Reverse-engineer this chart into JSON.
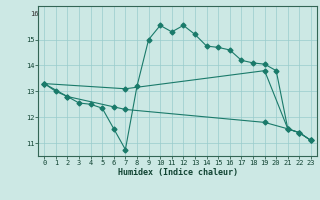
{
  "xlabel": "Humidex (Indice chaleur)",
  "background_color": "#cce8e4",
  "grid_color": "#99cccc",
  "line_color": "#1a7a6a",
  "xlim": [
    -0.5,
    23.5
  ],
  "ylim": [
    10.5,
    16.3
  ],
  "xticks": [
    0,
    1,
    2,
    3,
    4,
    5,
    6,
    7,
    8,
    9,
    10,
    11,
    12,
    13,
    14,
    15,
    16,
    17,
    18,
    19,
    20,
    21,
    22,
    23
  ],
  "yticks": [
    11,
    12,
    13,
    14,
    15
  ],
  "ytick_top": 16,
  "line1_x": [
    0,
    1,
    2,
    3,
    4,
    5,
    6,
    7,
    8,
    9,
    10,
    11,
    12,
    13,
    14,
    15,
    16,
    17,
    18,
    19,
    20,
    21,
    22,
    23
  ],
  "line1_y": [
    13.3,
    13.0,
    12.8,
    12.55,
    12.5,
    12.35,
    11.55,
    10.75,
    13.2,
    15.0,
    15.55,
    15.3,
    15.55,
    15.2,
    14.75,
    14.7,
    14.6,
    14.2,
    14.1,
    14.05,
    13.8,
    11.55,
    11.4,
    11.1
  ],
  "line2_x": [
    0,
    7,
    19,
    21,
    22,
    23
  ],
  "line2_y": [
    13.3,
    13.1,
    13.8,
    11.55,
    11.4,
    11.1
  ],
  "line3_x": [
    0,
    2,
    6,
    7,
    19,
    21,
    22,
    23
  ],
  "line3_y": [
    13.3,
    12.8,
    12.4,
    12.3,
    11.8,
    11.55,
    11.4,
    11.1
  ],
  "xlabel_fontsize": 6,
  "tick_fontsize": 5
}
